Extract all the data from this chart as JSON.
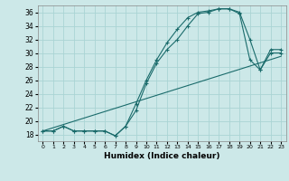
{
  "xlabel": "Humidex (Indice chaleur)",
  "ylabel": "",
  "bg_color": "#cce8e8",
  "grid_color": "#aad4d4",
  "line_color": "#1a6b6b",
  "xlim": [
    -0.5,
    23.5
  ],
  "ylim": [
    17.0,
    37.0
  ],
  "yticks": [
    18,
    20,
    22,
    24,
    26,
    28,
    30,
    32,
    34,
    36
  ],
  "xticks": [
    0,
    1,
    2,
    3,
    4,
    5,
    6,
    7,
    8,
    9,
    10,
    11,
    12,
    13,
    14,
    15,
    16,
    17,
    18,
    19,
    20,
    21,
    22,
    23
  ],
  "line1_x": [
    0,
    1,
    2,
    3,
    4,
    5,
    6,
    7,
    8,
    9,
    10,
    11,
    12,
    13,
    14,
    15,
    16,
    17,
    18,
    19,
    20,
    21,
    22,
    23
  ],
  "line1_y": [
    18.5,
    18.5,
    19.2,
    18.5,
    18.5,
    18.5,
    18.5,
    17.8,
    19.2,
    22.5,
    26.0,
    29.0,
    31.5,
    33.5,
    35.2,
    36.0,
    36.2,
    36.5,
    36.5,
    36.0,
    32.0,
    27.5,
    30.5,
    30.5
  ],
  "line2_x": [
    0,
    1,
    2,
    3,
    4,
    5,
    6,
    7,
    8,
    9,
    10,
    11,
    12,
    13,
    14,
    15,
    16,
    17,
    18,
    19,
    20,
    21,
    22,
    23
  ],
  "line2_y": [
    18.5,
    18.5,
    19.2,
    18.5,
    18.5,
    18.5,
    18.5,
    17.8,
    19.2,
    21.5,
    25.5,
    28.5,
    30.5,
    32.0,
    34.0,
    35.8,
    36.0,
    36.5,
    36.5,
    35.8,
    29.0,
    27.5,
    30.0,
    30.0
  ],
  "line3_x": [
    0,
    23
  ],
  "line3_y": [
    18.5,
    29.5
  ]
}
